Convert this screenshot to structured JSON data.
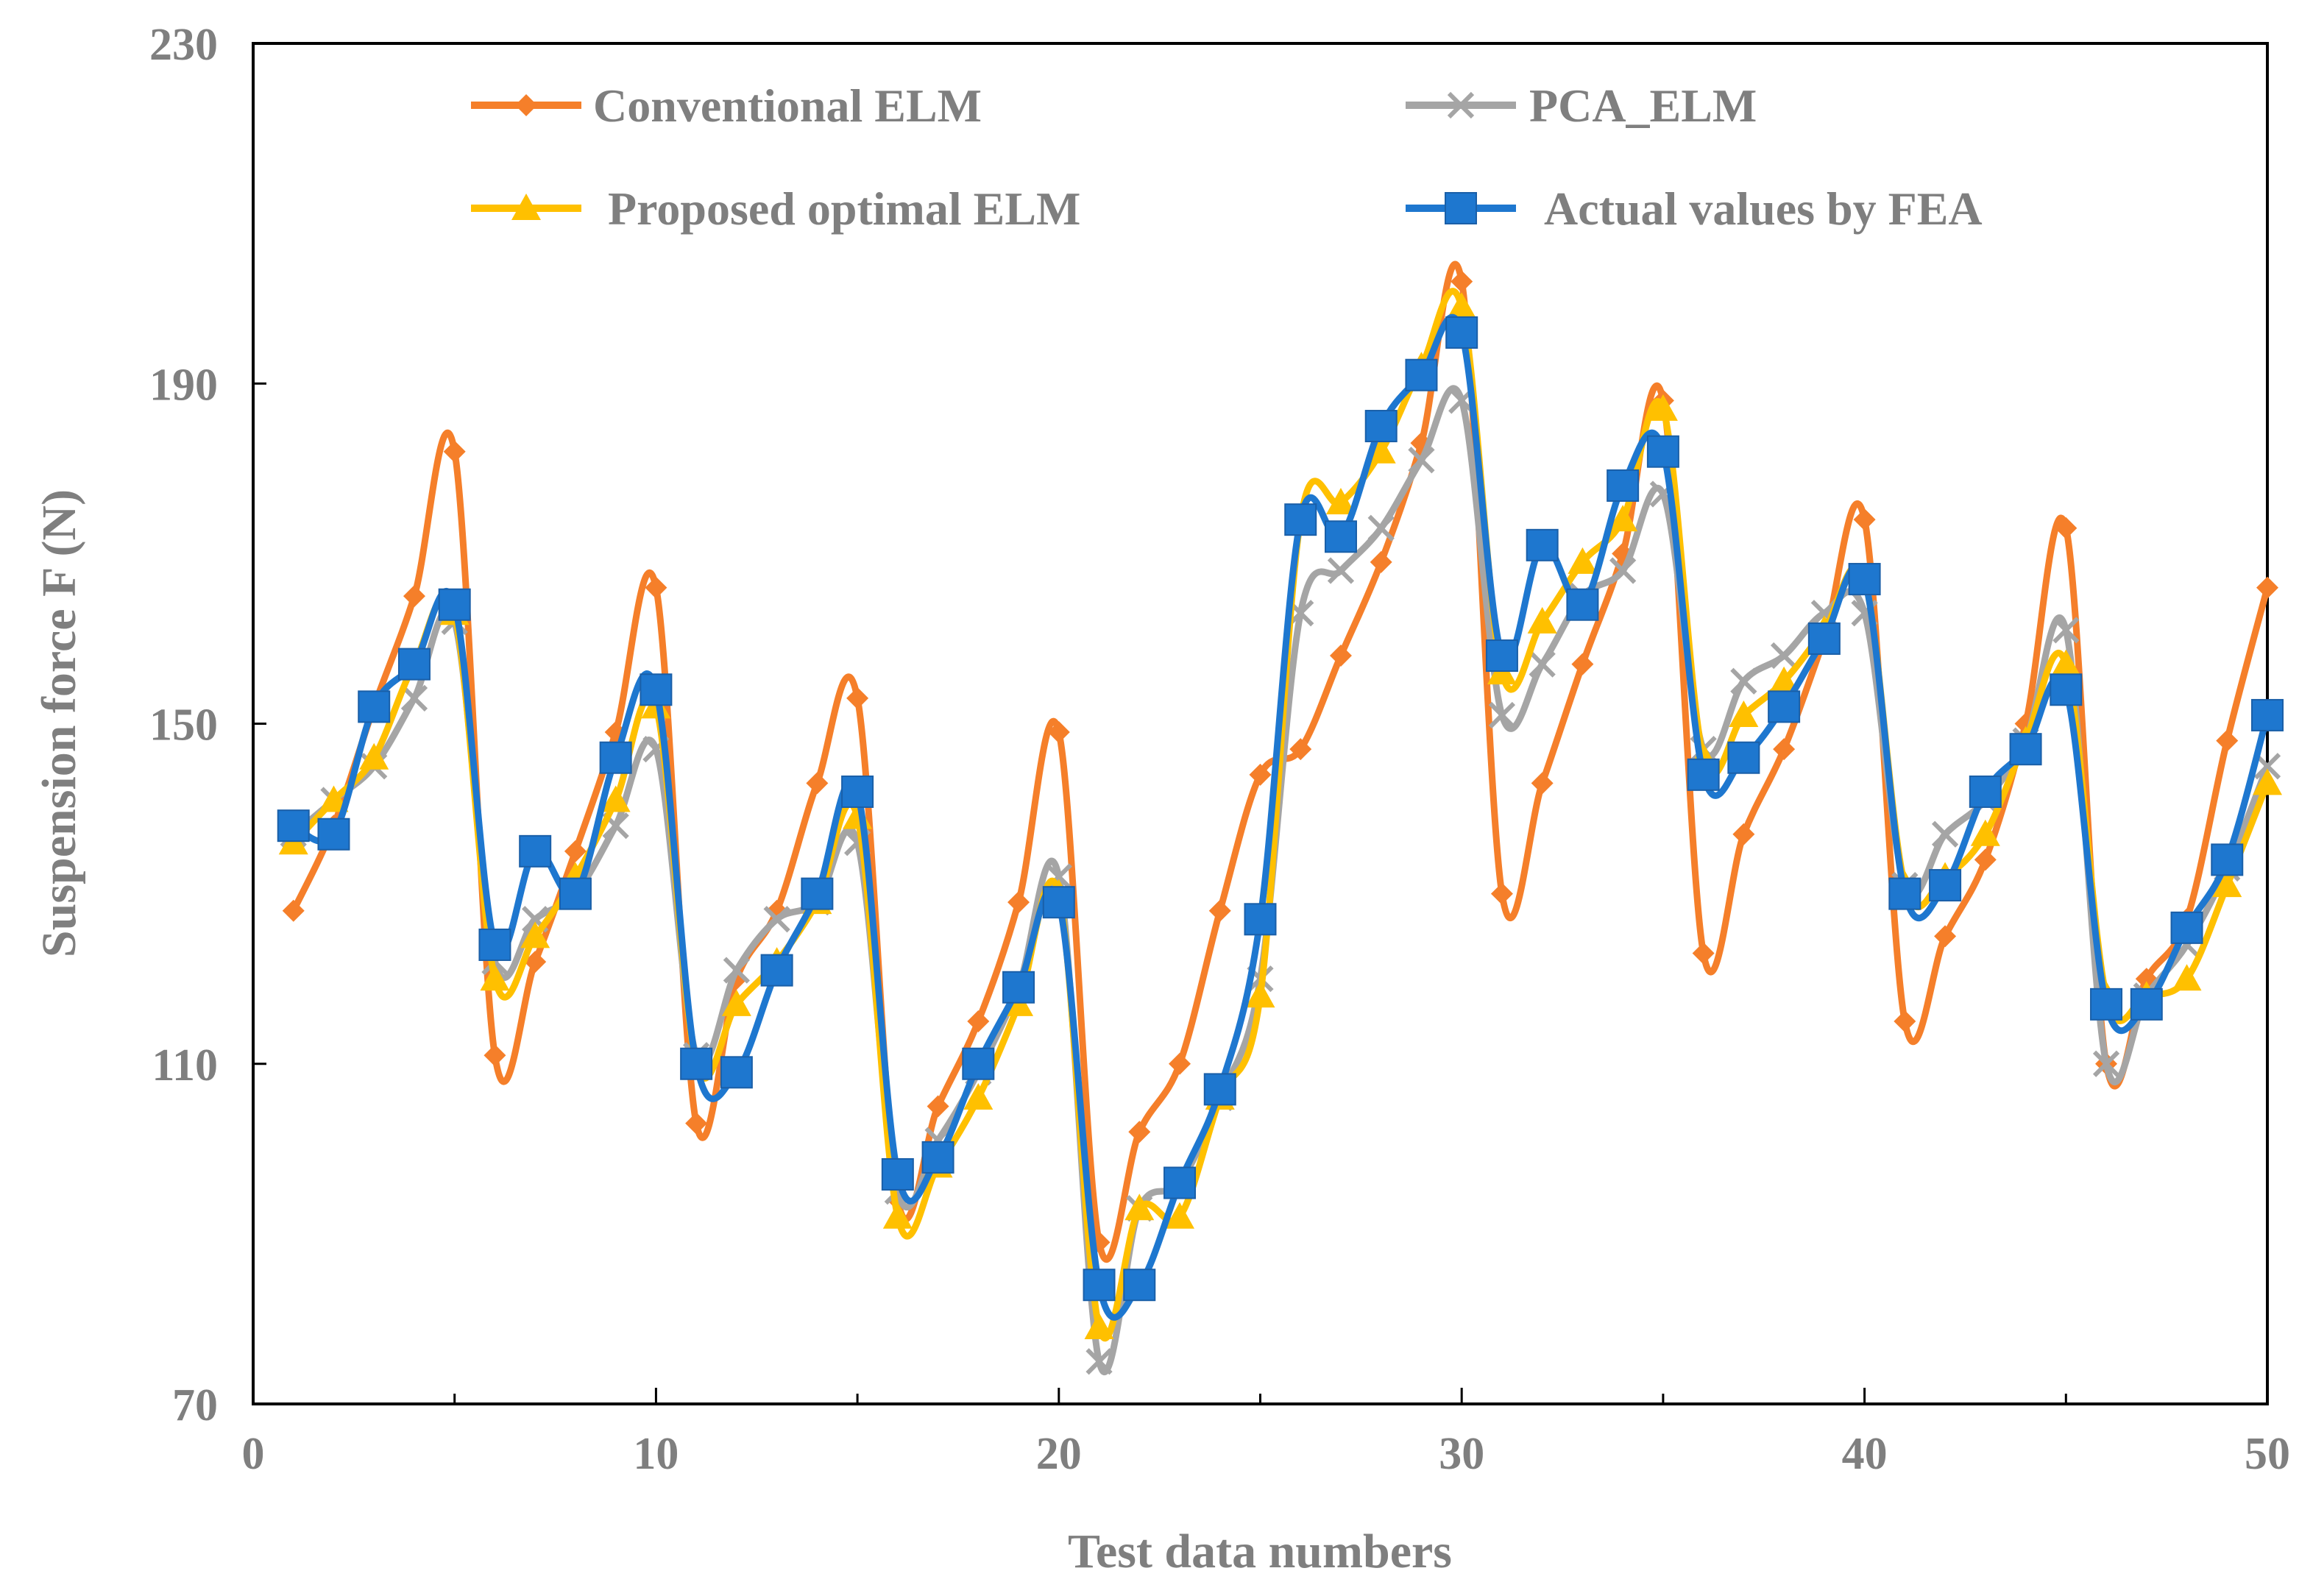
{
  "chart_data": {
    "type": "line",
    "title": "",
    "xlabel": "Test data numbers",
    "ylabel": "Suspension force F (N)",
    "xlim": [
      0,
      50
    ],
    "ylim": [
      70,
      230
    ],
    "xticks": [
      0,
      10,
      20,
      30,
      40,
      50
    ],
    "yticks": [
      70,
      110,
      150,
      190,
      230
    ],
    "x": [
      1,
      2,
      3,
      4,
      5,
      6,
      7,
      8,
      9,
      10,
      11,
      12,
      13,
      14,
      15,
      16,
      17,
      18,
      19,
      20,
      21,
      22,
      23,
      24,
      25,
      26,
      27,
      28,
      29,
      30,
      31,
      32,
      33,
      34,
      35,
      36,
      37,
      38,
      39,
      40,
      41,
      42,
      43,
      44,
      45,
      46,
      47,
      48,
      49,
      50
    ],
    "legend_position": "top",
    "series": [
      {
        "name": "Conventional ELM",
        "color": "#f57f2a",
        "marker": "diamond",
        "values": [
          128,
          138,
          152,
          165,
          182,
          111,
          122,
          135,
          149,
          166,
          103,
          120,
          128,
          143,
          153,
          94,
          105,
          115,
          129,
          149,
          89,
          102,
          110,
          128,
          144,
          147,
          158,
          169,
          183,
          202,
          130,
          143,
          157,
          170,
          188,
          123,
          137,
          147,
          160,
          174,
          115,
          125,
          134,
          150,
          173,
          110,
          120,
          127,
          148,
          166
        ]
      },
      {
        "name": "PCA_ELM",
        "color": "#a5a5a5",
        "marker": "x",
        "values": [
          137,
          141,
          145,
          153,
          162,
          122,
          127,
          130,
          138,
          147,
          111,
          121,
          127,
          129,
          136,
          95,
          101,
          109,
          119,
          132,
          75,
          93,
          96,
          106,
          120,
          163,
          168,
          173,
          181,
          188,
          151,
          157,
          165,
          168,
          177,
          147,
          155,
          158,
          163,
          163,
          131,
          137,
          141,
          148,
          161,
          110,
          118,
          124,
          133,
          145
        ]
      },
      {
        "name": "Proposed optimal ELM",
        "color": "#ffc000",
        "marker": "triangle",
        "values": [
          136,
          141,
          146,
          157,
          163,
          120,
          125,
          132,
          141,
          152,
          110,
          117,
          122,
          129,
          139,
          92,
          98,
          106,
          117,
          130,
          79,
          93,
          92,
          106,
          118,
          174,
          176,
          182,
          192,
          199,
          156,
          162,
          169,
          174,
          187,
          146,
          151,
          155,
          161,
          167,
          131,
          132,
          137,
          148,
          157,
          118,
          118,
          120,
          131,
          143
        ]
      },
      {
        "name": "Actual values by FEA",
        "color": "#1e77cf",
        "marker": "square",
        "values": [
          138,
          137,
          152,
          157,
          164,
          124,
          135,
          130,
          146,
          154,
          110,
          109,
          121,
          130,
          142,
          97,
          99,
          110,
          119,
          129,
          84,
          84,
          96,
          107,
          127,
          174,
          172,
          185,
          191,
          196,
          158,
          171,
          164,
          178,
          182,
          144,
          146,
          152,
          160,
          167,
          130,
          131,
          142,
          147,
          154,
          117,
          117,
          126,
          134,
          151
        ]
      }
    ]
  }
}
